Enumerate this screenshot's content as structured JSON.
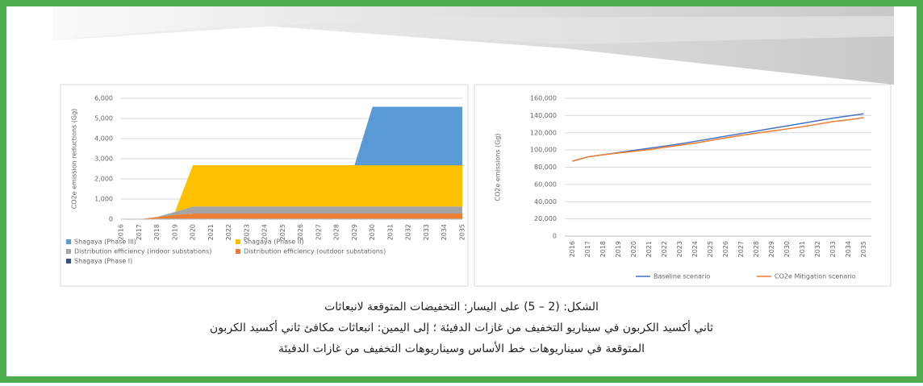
{
  "chart_data": [
    {
      "type": "area",
      "stacked": true,
      "ylabel": "CO2e emission reductions (Gg)",
      "categories": [
        "2016",
        "2017",
        "2018",
        "2019",
        "2020",
        "2021",
        "2022",
        "2023",
        "2024",
        "2025",
        "2026",
        "2027",
        "2028",
        "2029",
        "2030",
        "2031",
        "2032",
        "2033",
        "2034",
        "2035"
      ],
      "series": [
        {
          "name": "Shagaya (Phase I)",
          "color": "#2f4f8f",
          "values": [
            0,
            0,
            30,
            30,
            30,
            30,
            30,
            30,
            30,
            30,
            30,
            30,
            30,
            30,
            30,
            30,
            30,
            30,
            30,
            30
          ]
        },
        {
          "name": "Distribution efficiency (outdoor substations)",
          "color": "#ed7d31",
          "values": [
            0,
            0,
            80,
            180,
            250,
            250,
            250,
            250,
            250,
            250,
            250,
            250,
            250,
            250,
            250,
            250,
            250,
            250,
            250,
            250
          ]
        },
        {
          "name": "Distribution efficiency (indoor substations)",
          "color": "#a5a5a5",
          "values": [
            0,
            0,
            0,
            150,
            350,
            350,
            350,
            350,
            350,
            350,
            350,
            350,
            350,
            350,
            350,
            350,
            350,
            350,
            350,
            350
          ]
        },
        {
          "name": "Shagaya (Phase II)",
          "color": "#ffc000",
          "values": [
            0,
            0,
            0,
            0,
            2050,
            2050,
            2050,
            2050,
            2050,
            2050,
            2050,
            2050,
            2050,
            2050,
            2050,
            2050,
            2050,
            2050,
            2050,
            2050
          ]
        },
        {
          "name": "Shagaya (Phase III)",
          "color": "#5b9bd5",
          "values": [
            0,
            0,
            0,
            0,
            0,
            0,
            0,
            0,
            0,
            0,
            0,
            0,
            0,
            0,
            2900,
            2900,
            2900,
            2900,
            2900,
            2900
          ]
        }
      ],
      "legend_order": [
        4,
        3,
        2,
        1,
        0
      ],
      "ylim": [
        0,
        6000
      ],
      "yticks": [
        0,
        {
          "value": 1000,
          "label": "1,000"
        },
        {
          "value": 2000,
          "label": "2,000"
        },
        {
          "value": 3000,
          "label": "3,000"
        },
        {
          "value": 4000,
          "label": "4,000"
        },
        {
          "value": 5000,
          "label": "5,000"
        },
        {
          "value": 6000,
          "label": "6,000"
        }
      ],
      "grid": true
    },
    {
      "type": "line",
      "ylabel": "CO2e emissions (Gg)",
      "categories": [
        "2016",
        "2017",
        "2018",
        "2019",
        "2020",
        "2021",
        "2022",
        "2023",
        "2024",
        "2025",
        "2026",
        "2027",
        "2028",
        "2029",
        "2030",
        "2031",
        "2032",
        "2033",
        "2034",
        "2035"
      ],
      "series": [
        {
          "name": "Baseline scenario",
          "color": "#4472c4",
          "values": [
            87000,
            92000,
            94500,
            97000,
            99500,
            102000,
            104500,
            107000,
            110000,
            113000,
            116000,
            119000,
            122000,
            125000,
            128000,
            131000,
            134000,
            137000,
            139500,
            142000
          ]
        },
        {
          "name": "CO2e Mitigation scenario",
          "color": "#ed7d31",
          "values": [
            87000,
            92000,
            94500,
            96500,
            98500,
            100500,
            103000,
            105500,
            108000,
            111000,
            114000,
            117000,
            119500,
            122000,
            124500,
            127000,
            130000,
            133000,
            135000,
            137500
          ]
        }
      ],
      "ylim": [
        0,
        160000
      ],
      "yticks": [
        0,
        {
          "value": 20000,
          "label": "20,000"
        },
        {
          "value": 40000,
          "label": "40,000"
        },
        {
          "value": 60000,
          "label": "60,000"
        },
        {
          "value": 80000,
          "label": "80,000"
        },
        {
          "value": 100000,
          "label": "100,000"
        },
        {
          "value": 120000,
          "label": "120,000"
        },
        {
          "value": 140000,
          "label": "140,000"
        },
        {
          "value": 160000,
          "label": "160,000"
        }
      ],
      "grid": true
    }
  ],
  "caption": {
    "lines": [
      "الشكل: (2 – 5) على اليسار: التخفيضات المتوقعة لانبعاثات",
      "ثاني أكسيد الكربون في سيناريو التخفيف من غازات الدفيئة ؛ إلى اليمين: انبعاثات مكافئ ثاني أكسيد الكربون",
      "المتوقعة في سيناريوهات خط الأساس وسيناريوهات التخفيف من غازات الدفيئة"
    ]
  }
}
